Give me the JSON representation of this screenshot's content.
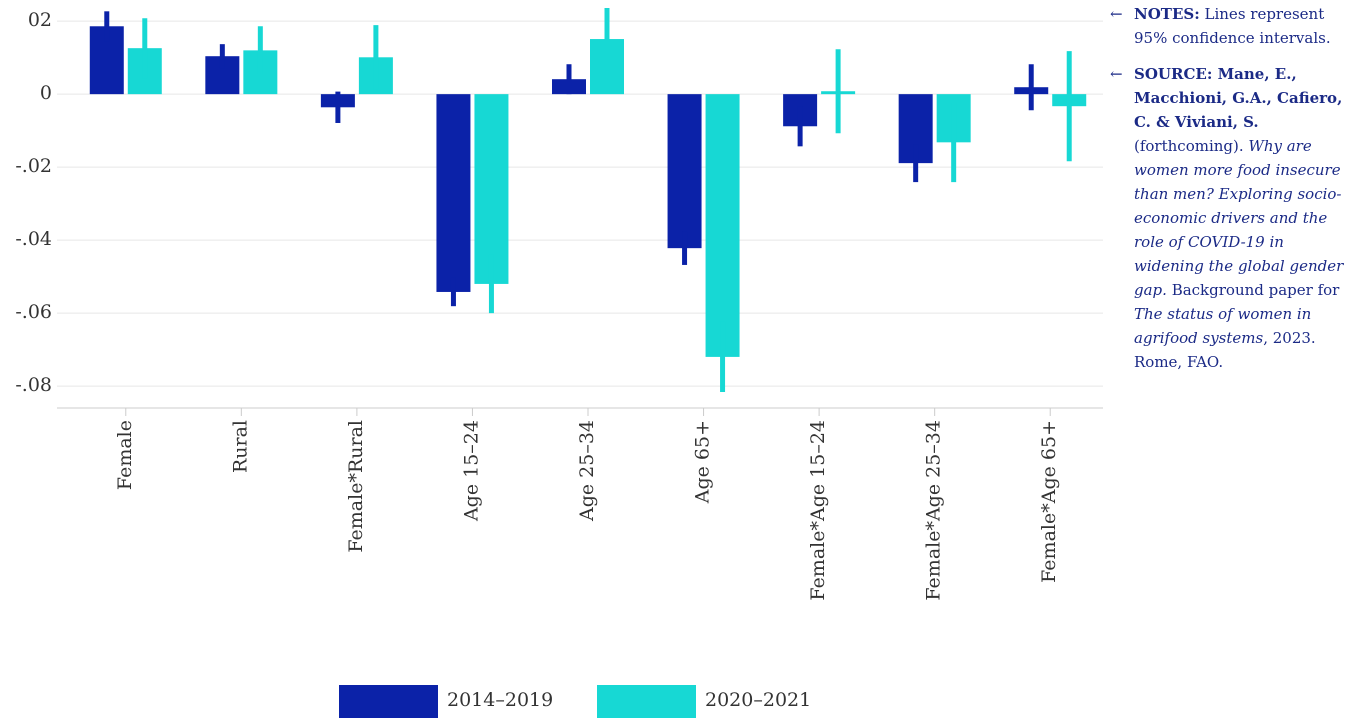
{
  "chart_data": {
    "type": "bar",
    "categories": [
      "Female",
      "Rural",
      "Female*Rural",
      "Age 15–24",
      "Age 25–34",
      "Age 65+",
      "Female*Age 15–24",
      "Female*Age 25–34",
      "Female*Age 65+"
    ],
    "series": [
      {
        "name": "2014–2019",
        "color": "#0b22a8",
        "values": [
          0.0186,
          0.0104,
          -0.0036,
          -0.0542,
          0.0041,
          -0.0422,
          -0.0088,
          -0.0189,
          0.0019
        ],
        "errors": [
          0.0041,
          0.0033,
          0.0043,
          0.0039,
          0.0041,
          0.0046,
          0.0055,
          0.0052,
          0.0063
        ]
      },
      {
        "name": "2020–2021",
        "color": "#17d8d4",
        "values": [
          0.0126,
          0.012,
          0.0101,
          -0.052,
          0.0151,
          -0.072,
          0.0008,
          -0.0132,
          -0.0033
        ],
        "errors": [
          0.0082,
          0.0066,
          0.0088,
          0.008,
          0.0085,
          0.0096,
          0.0115,
          0.0109,
          0.0151
        ]
      }
    ],
    "ylim": [
      -0.086,
      0.0258
    ],
    "yticks": [
      {
        "value": 0.02,
        "label": "02"
      },
      0,
      {
        "value": -0.02,
        "label": "-.02"
      },
      {
        "value": -0.04,
        "label": "-.04"
      },
      {
        "value": -0.06,
        "label": "-.06"
      },
      {
        "value": -0.08,
        "label": "-.08"
      }
    ],
    "grid": true
  },
  "notes": [
    {
      "label": "NOTES:",
      "text": " Lines represent 95% confidence intervals."
    },
    {
      "runs": [
        {
          "style": "bold",
          "text": "SOURCE: Mane, E., Macchioni, G.A., Cafiero, C. & Viviani, S."
        },
        {
          "style": "normal",
          "text": " (forthcoming). "
        },
        {
          "style": "italic",
          "text": "Why are women more food insecure than men? Exploring socio-economic drivers and the role of COVID-19 in widening the global gender gap."
        },
        {
          "style": "normal",
          "text": " Background paper for "
        },
        {
          "style": "italic",
          "text": "The status of women in agrifood systems"
        },
        {
          "style": "normal",
          "text": ", 2023. Rome, FAO."
        }
      ]
    }
  ]
}
